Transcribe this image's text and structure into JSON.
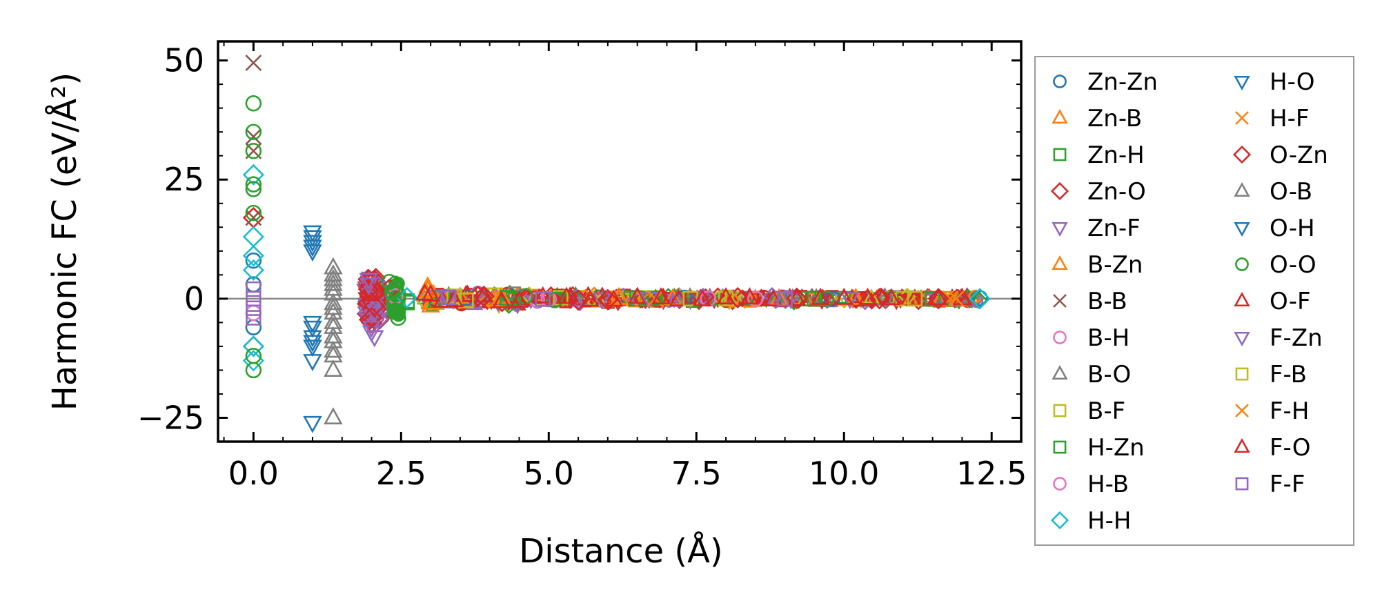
{
  "chart_data": {
    "type": "scatter",
    "title": "",
    "xlabel": "Distance (Å)",
    "ylabel": "Harmonic FC (eV/Å²)",
    "xlim": [
      -0.6,
      13.0
    ],
    "ylim": [
      -30,
      54
    ],
    "xticks": [
      0.0,
      2.5,
      5.0,
      7.5,
      10.0,
      12.5
    ],
    "xtick_labels": [
      "0.0",
      "2.5",
      "5.0",
      "7.5",
      "10.0",
      "12.5"
    ],
    "yticks": [
      -25,
      0,
      25,
      50
    ],
    "ytick_labels": [
      "−25",
      "0",
      "25",
      "50"
    ],
    "reference_line_y": 0,
    "legend_position": "outside-right",
    "series": [
      {
        "name": "Zn-Zn",
        "marker": "circle",
        "color": "#1f77b4",
        "x": [
          0,
          0,
          0,
          3.6,
          5.1,
          7.3,
          9.8,
          12.3
        ],
        "y": [
          8,
          -6,
          3,
          0.3,
          -0.2,
          0.2,
          0,
          0.1
        ]
      },
      {
        "name": "Zn-B",
        "marker": "triangle-up",
        "color": "#ff7f0e",
        "x": [
          2.95,
          3.0,
          3.05,
          3.5,
          4.1,
          6.2,
          8.9
        ],
        "y": [
          2.5,
          -1.5,
          0.8,
          0.3,
          -0.3,
          0.1,
          0
        ]
      },
      {
        "name": "Zn-H",
        "marker": "square",
        "color": "#2ca02c",
        "x": [
          2.4,
          2.6,
          3.2,
          4.4,
          6.8,
          9.5,
          11.5
        ],
        "y": [
          1.2,
          -0.8,
          0.4,
          -0.2,
          0.1,
          0,
          0
        ]
      },
      {
        "name": "Zn-O",
        "marker": "diamond",
        "color": "#d62728",
        "x": [
          0,
          0,
          1.95,
          2.0,
          2.05,
          2.3,
          3.9,
          5.5,
          8.2,
          10.6
        ],
        "y": [
          17,
          -10,
          4,
          -5,
          1.5,
          2,
          0.5,
          -0.3,
          0.2,
          0
        ]
      },
      {
        "name": "Zn-F",
        "marker": "triangle-down",
        "color": "#9467bd",
        "x": [
          1.95,
          2.0,
          2.05,
          3.1,
          5.9,
          9.1
        ],
        "y": [
          3,
          -7,
          -3,
          0.4,
          -0.1,
          0
        ]
      },
      {
        "name": "B-Zn",
        "marker": "triangle-up",
        "color": "#ff7f0e",
        "x": [
          2.95,
          3.0,
          4.2,
          7.1,
          10.2
        ],
        "y": [
          1.8,
          -0.9,
          0.3,
          0,
          0.1
        ]
      },
      {
        "name": "B-B",
        "marker": "x",
        "color": "#8c564b",
        "x": [
          0,
          0,
          0,
          0
        ],
        "y": [
          49.5,
          34,
          31,
          17
        ]
      },
      {
        "name": "B-H",
        "marker": "circle",
        "color": "#e377c2",
        "x": [
          0,
          2.4,
          4.8,
          7.7
        ],
        "y": [
          -3,
          0.6,
          -0.2,
          0
        ]
      },
      {
        "name": "B-O",
        "marker": "triangle-up",
        "color": "#7f7f7f",
        "x": [
          1.35,
          1.35,
          1.35,
          1.35,
          1.35,
          1.35,
          1.35,
          1.35,
          1.35,
          1.35,
          1.35
        ],
        "y": [
          6.5,
          5,
          3,
          1,
          -1,
          -3,
          -6,
          -9,
          -12,
          -15,
          -25
        ]
      },
      {
        "name": "B-F",
        "marker": "square",
        "color": "#bcbd22",
        "x": [
          3.4,
          3.6,
          5.2,
          8.0,
          11.0
        ],
        "y": [
          0.5,
          -0.4,
          0.2,
          0,
          0
        ]
      },
      {
        "name": "H-Zn",
        "marker": "square",
        "color": "#2ca02c",
        "x": [
          2.4,
          2.6,
          4.3,
          6.5,
          9.4
        ],
        "y": [
          0.8,
          -0.5,
          0.2,
          0,
          0
        ]
      },
      {
        "name": "H-B",
        "marker": "circle",
        "color": "#e377c2",
        "x": [
          2.4,
          5.0,
          8.5
        ],
        "y": [
          0.5,
          -0.1,
          0
        ]
      },
      {
        "name": "H-H",
        "marker": "diamond",
        "color": "#17becf",
        "x": [
          0,
          0,
          0,
          0,
          0,
          0,
          2.6,
          12.3
        ],
        "y": [
          26,
          13,
          9,
          6,
          -10,
          -13,
          0.2,
          0
        ]
      },
      {
        "name": "H-O",
        "marker": "triangle-down",
        "color": "#1f77b4",
        "x": [
          1.0,
          1.0,
          1.0,
          1.0,
          1.0,
          1.0,
          1.0,
          1.0
        ],
        "y": [
          14,
          12,
          10,
          -5,
          -8,
          -10,
          -13,
          -26
        ]
      },
      {
        "name": "H-F",
        "marker": "x",
        "color": "#ff7f0e",
        "x": [
          6.6,
          11.8
        ],
        "y": [
          0,
          0
        ]
      },
      {
        "name": "O-Zn",
        "marker": "diamond",
        "color": "#d62728",
        "x": [
          1.95,
          2.0,
          2.05,
          3.8,
          6.0,
          9.2,
          11.6
        ],
        "y": [
          2,
          -4,
          -1.5,
          0.5,
          -0.2,
          0.1,
          0
        ]
      },
      {
        "name": "O-B",
        "marker": "triangle-up",
        "color": "#7f7f7f",
        "x": [
          1.35,
          1.35,
          1.35,
          1.35,
          1.35,
          1.35
        ],
        "y": [
          4,
          2,
          -2,
          -5,
          -8,
          -11
        ]
      },
      {
        "name": "O-H",
        "marker": "triangle-down",
        "color": "#1f77b4",
        "x": [
          1.0,
          1.0,
          1.0,
          1.0
        ],
        "y": [
          13,
          11,
          -6,
          -9
        ]
      },
      {
        "name": "O-O",
        "marker": "circle",
        "color": "#2ca02c",
        "x": [
          0,
          0,
          0,
          0,
          0,
          0,
          0,
          0,
          2.3,
          2.35,
          2.4,
          2.4,
          2.45,
          2.4,
          4.6,
          5.1,
          9.7
        ],
        "y": [
          41,
          35,
          31,
          24,
          23,
          18,
          -12,
          -15,
          3.5,
          1.5,
          -1,
          -2.5,
          -4,
          2,
          0.5,
          -0.3,
          0
        ]
      },
      {
        "name": "O-F",
        "marker": "triangle-up",
        "color": "#d62728",
        "x": [
          2.9,
          3.2,
          3.6,
          4.2,
          4.9,
          5.7,
          6.5,
          7.2,
          8.0,
          8.8,
          9.6,
          10.4,
          11.2,
          12.0
        ],
        "y": [
          1.0,
          -0.5,
          0.7,
          -0.6,
          0.4,
          -0.3,
          0.3,
          -0.2,
          0.2,
          -0.2,
          0.1,
          0.1,
          -0.1,
          0
        ]
      },
      {
        "name": "F-Zn",
        "marker": "triangle-down",
        "color": "#9467bd",
        "x": [
          1.95,
          2.0,
          2.05,
          3.3,
          6.7,
          10.1
        ],
        "y": [
          4,
          -6,
          -8,
          0.3,
          0,
          0
        ]
      },
      {
        "name": "F-B",
        "marker": "square",
        "color": "#bcbd22",
        "x": [
          3.4,
          3.6,
          7.4,
          11.2
        ],
        "y": [
          0.4,
          -0.3,
          0,
          0
        ]
      },
      {
        "name": "F-H",
        "marker": "x",
        "color": "#ff7f0e",
        "x": [
          6.8,
          11.9
        ],
        "y": [
          0,
          0
        ]
      },
      {
        "name": "F-O",
        "marker": "triangle-up",
        "color": "#d62728",
        "x": [
          3.0,
          3.4,
          3.9,
          4.5,
          5.3,
          6.1,
          6.9,
          7.6,
          8.4,
          9.2,
          10.0,
          10.8,
          11.6
        ],
        "y": [
          0.8,
          -0.4,
          0.6,
          -0.5,
          0.3,
          -0.3,
          0.2,
          -0.2,
          0.2,
          -0.1,
          0.1,
          0,
          0
        ]
      },
      {
        "name": "F-F",
        "marker": "square",
        "color": "#9467bd",
        "x": [
          0,
          0,
          0,
          0,
          3.3,
          4.9,
          9.0
        ],
        "y": [
          2,
          0,
          -2,
          -4,
          0.3,
          -0.1,
          0
        ]
      }
    ]
  }
}
